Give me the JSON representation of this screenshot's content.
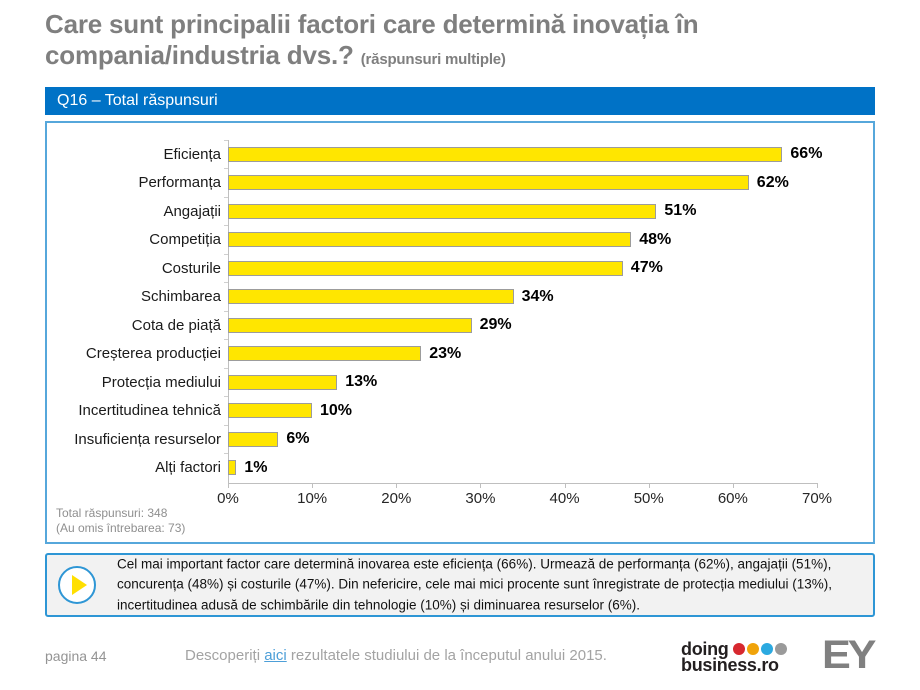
{
  "page": {
    "title_line1": "Care sunt principalii factori care determină inovația în",
    "title_line2": "compania/industria dvs.?",
    "title_note": "(răspunsuri multiple)",
    "banner": "Q16 – Total răspunsuri"
  },
  "chart_data": {
    "type": "bar",
    "orientation": "horizontal",
    "title": "Q16 – Total răspunsuri",
    "categories": [
      "Eficiența",
      "Performanța",
      "Angajații",
      "Competiția",
      "Costurile",
      "Schimbarea",
      "Cota de piață",
      "Creșterea producției",
      "Protecția mediului",
      "Incertitudinea tehnică",
      "Insuficiența resurselor",
      "Alți factori"
    ],
    "values": [
      66,
      62,
      51,
      48,
      47,
      34,
      29,
      23,
      13,
      10,
      6,
      1
    ],
    "value_labels": [
      "66%",
      "62%",
      "51%",
      "48%",
      "47%",
      "34%",
      "29%",
      "23%",
      "13%",
      "10%",
      "6%",
      "1%"
    ],
    "x_ticks": [
      "0%",
      "10%",
      "20%",
      "30%",
      "40%",
      "50%",
      "60%",
      "70%"
    ],
    "xlim": [
      0,
      70
    ],
    "grid": false,
    "legend": false,
    "bar_color": "#FFE600",
    "bar_border_color": "#9C9C9C"
  },
  "chart_note": {
    "line1": "Total răspunsuri: 348",
    "line2": "(Au omis întrebarea: 73)"
  },
  "summary_box": {
    "icon": "play-icon",
    "text": "Cel mai important factor care determină inovarea este eficiența (66%).  Urmează de performanța (62%), angajații (51%), concurența (48%)  și costurile (47%). Din nefericire, cele mai mici procente sunt înregistrate de protecția mediului (13%), incertitudinea adusă de schimbările din tehnologie (10%) și diminuarea resurselor (6%)."
  },
  "footer": {
    "page_label": "pagina 44",
    "link_prefix": "Descoperiți ",
    "link_text": "aici",
    "link_suffix": " rezultatele studiului de la începutul anului 2015.",
    "doing_logo": {
      "line1": "doing",
      "line2": "business.ro",
      "dot_colors": [
        "#D7282F",
        "#F0A30A",
        "#2BA9E0",
        "#9A9A9A"
      ]
    },
    "ey_logo": "EY"
  },
  "colors": {
    "title_gray": "#7F7F7F",
    "banner_blue": "#0072C6",
    "box_border_blue": "#56A7DB",
    "note_border_blue": "#2E96D5",
    "bar_yellow": "#FFE600",
    "note_bg": "#F2F2F2",
    "link_blue": "#4D9FD8",
    "ey_gray": "#808080"
  }
}
